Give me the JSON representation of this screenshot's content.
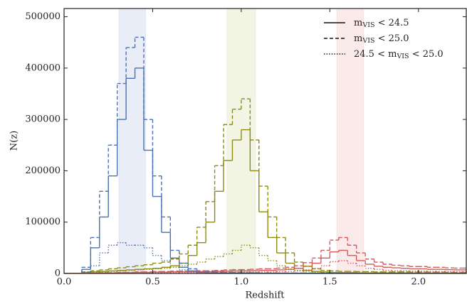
{
  "chart_data": {
    "type": "step-histogram",
    "xlabel": "Redshift",
    "ylabel": "N(z)",
    "xlim": [
      0,
      2.27
    ],
    "ylim": [
      0,
      516000
    ],
    "xticks": [
      {
        "value": 0,
        "label": "0.0"
      },
      0.5,
      {
        "value": 1,
        "label": "1.0"
      },
      1.5,
      {
        "value": 2,
        "label": "2.0"
      }
    ],
    "yticks": [
      0,
      100000,
      200000,
      300000,
      400000,
      500000
    ],
    "legend": "upper right",
    "bands": [
      {
        "range": [
          0.31,
          0.46
        ],
        "color": "#dfe6f4"
      },
      {
        "range": [
          0.92,
          1.08
        ],
        "color": "#ecefd9"
      },
      {
        "range": [
          1.54,
          1.69
        ],
        "color": "#f8e1e1"
      }
    ],
    "bins": [
      0,
      0.05,
      0.1,
      0.15,
      0.2,
      0.25,
      0.3,
      0.35,
      0.4,
      0.45,
      0.5,
      0.55,
      0.6,
      0.65,
      0.7,
      0.75,
      0.8,
      0.85,
      0.9,
      0.95,
      1.0,
      1.05,
      1.1,
      1.15,
      1.2,
      1.25,
      1.3,
      1.35,
      1.4,
      1.45,
      1.5,
      1.55,
      1.6,
      1.65,
      1.7,
      1.75,
      1.8,
      1.85,
      1.9,
      1.95,
      2.0,
      2.05,
      2.1,
      2.15,
      2.2,
      2.25,
      2.3
    ],
    "groups": [
      {
        "name": "mVIS < 24.5",
        "dash": "solid",
        "series": [
          {
            "color": "#4c72b0",
            "values": [
              0,
              0,
              8000,
              50000,
              110000,
              190000,
              300000,
              380000,
              400000,
              240000,
              150000,
              80000,
              30000,
              12000,
              5000,
              2000,
              1000,
              1000,
              1000,
              1000,
              1000,
              1000,
              500,
              500,
              500,
              500,
              500,
              500,
              500,
              500,
              0,
              0,
              0,
              0,
              0,
              0,
              0,
              0,
              0,
              0,
              0,
              0,
              0,
              0,
              0,
              0
            ]
          },
          {
            "color": "#8c8c14",
            "values": [
              0,
              0,
              2000,
              3000,
              4000,
              5000,
              6000,
              7000,
              8000,
              9000,
              10000,
              12000,
              15000,
              20000,
              35000,
              60000,
              100000,
              160000,
              220000,
              260000,
              280000,
              200000,
              120000,
              70000,
              40000,
              20000,
              10000,
              6000,
              4000,
              3000,
              2000,
              1500,
              1500,
              1000,
              1000,
              1000,
              1000,
              1000,
              1000,
              1000,
              1000,
              800,
              800,
              800,
              800,
              800
            ]
          },
          {
            "color": "#d45a5a",
            "values": [
              0,
              0,
              0,
              500,
              1000,
              1000,
              1500,
              1500,
              2000,
              2000,
              2500,
              2500,
              3000,
              3000,
              3000,
              3500,
              3500,
              4000,
              4500,
              5000,
              5000,
              5500,
              6000,
              6000,
              7000,
              8000,
              10000,
              14000,
              20000,
              30000,
              42000,
              45000,
              35000,
              25000,
              18000,
              14000,
              12000,
              11000,
              10000,
              9000,
              9000,
              8000,
              8000,
              7500,
              7000,
              7000
            ]
          }
        ]
      },
      {
        "name": "mVIS < 25.0",
        "dash": "dashed",
        "series": [
          {
            "color": "#4c72b0",
            "values": [
              0,
              0,
              12000,
              70000,
              160000,
              250000,
              370000,
              440000,
              460000,
              300000,
              190000,
              110000,
              45000,
              20000,
              9000,
              5000,
              3000,
              2500,
              2000,
              2000,
              1500,
              1500,
              1000,
              1000,
              1000,
              1000,
              1000,
              1000,
              1000,
              1000,
              500,
              500,
              500,
              500,
              500,
              500,
              500,
              500,
              500,
              500,
              500,
              500,
              500,
              500,
              500,
              500
            ]
          },
          {
            "color": "#8c8c14",
            "values": [
              0,
              0,
              3000,
              5000,
              7000,
              9000,
              11000,
              13000,
              15000,
              17000,
              20000,
              22000,
              28000,
              38000,
              55000,
              90000,
              140000,
              210000,
              290000,
              320000,
              340000,
              260000,
              170000,
              110000,
              70000,
              40000,
              22000,
              14000,
              9000,
              6000,
              5000,
              4000,
              4000,
              3500,
              3500,
              3000,
              3000,
              3000,
              3000,
              2500,
              2500,
              2500,
              2500,
              2000,
              2000,
              2000
            ]
          },
          {
            "color": "#d45a5a",
            "values": [
              0,
              0,
              0,
              800,
              1500,
              1500,
              2200,
              2200,
              3000,
              3000,
              3800,
              3800,
              4500,
              4500,
              4500,
              5200,
              5200,
              6000,
              6800,
              7500,
              7500,
              8200,
              9000,
              9000,
              10500,
              12000,
              15000,
              21000,
              30000,
              45000,
              65000,
              70000,
              55000,
              40000,
              28000,
              22000,
              18000,
              16000,
              15000,
              13500,
              13500,
              12000,
              12000,
              11000,
              10500,
              10500
            ]
          }
        ]
      },
      {
        "name": "24.5 < mVIS < 25.0",
        "dash": "dotted",
        "series": [
          {
            "color": "#4c72b0",
            "values": [
              0,
              0,
              3000,
              15000,
              40000,
              55000,
              60000,
              55000,
              55000,
              50000,
              35000,
              25000,
              12000,
              7000,
              4000,
              2500,
              1500,
              1500,
              1000,
              1000,
              800,
              800,
              500,
              500,
              500,
              500,
              500,
              500,
              500,
              500,
              300,
              300,
              300,
              300,
              300,
              300,
              300,
              300,
              300,
              300,
              300,
              300,
              300,
              300,
              300,
              300
            ]
          },
          {
            "color": "#8c8c14",
            "values": [
              0,
              0,
              1000,
              2000,
              3000,
              4000,
              5000,
              6000,
              7000,
              8000,
              9000,
              10000,
              12000,
              15000,
              18000,
              22000,
              28000,
              33000,
              38000,
              45000,
              55000,
              50000,
              35000,
              25000,
              15000,
              9000,
              6000,
              4000,
              3000,
              2500,
              2000,
              2000,
              2000,
              1500,
              1500,
              1500,
              1500,
              1500,
              1500,
              1200,
              1200,
              1200,
              1200,
              1000,
              1000,
              1000
            ]
          },
          {
            "color": "#d45a5a",
            "values": [
              0,
              0,
              0,
              300,
              500,
              500,
              700,
              700,
              1000,
              1000,
              1300,
              1300,
              1500,
              1500,
              1500,
              1700,
              1700,
              2000,
              2300,
              2500,
              2500,
              2700,
              3000,
              3000,
              3500,
              4000,
              5000,
              7000,
              10000,
              15000,
              23000,
              25000,
              20000,
              15000,
              10000,
              8000,
              6000,
              5000,
              5000,
              4500,
              4500,
              4000,
              4000,
              3800,
              3500,
              3500
            ]
          }
        ]
      }
    ]
  }
}
